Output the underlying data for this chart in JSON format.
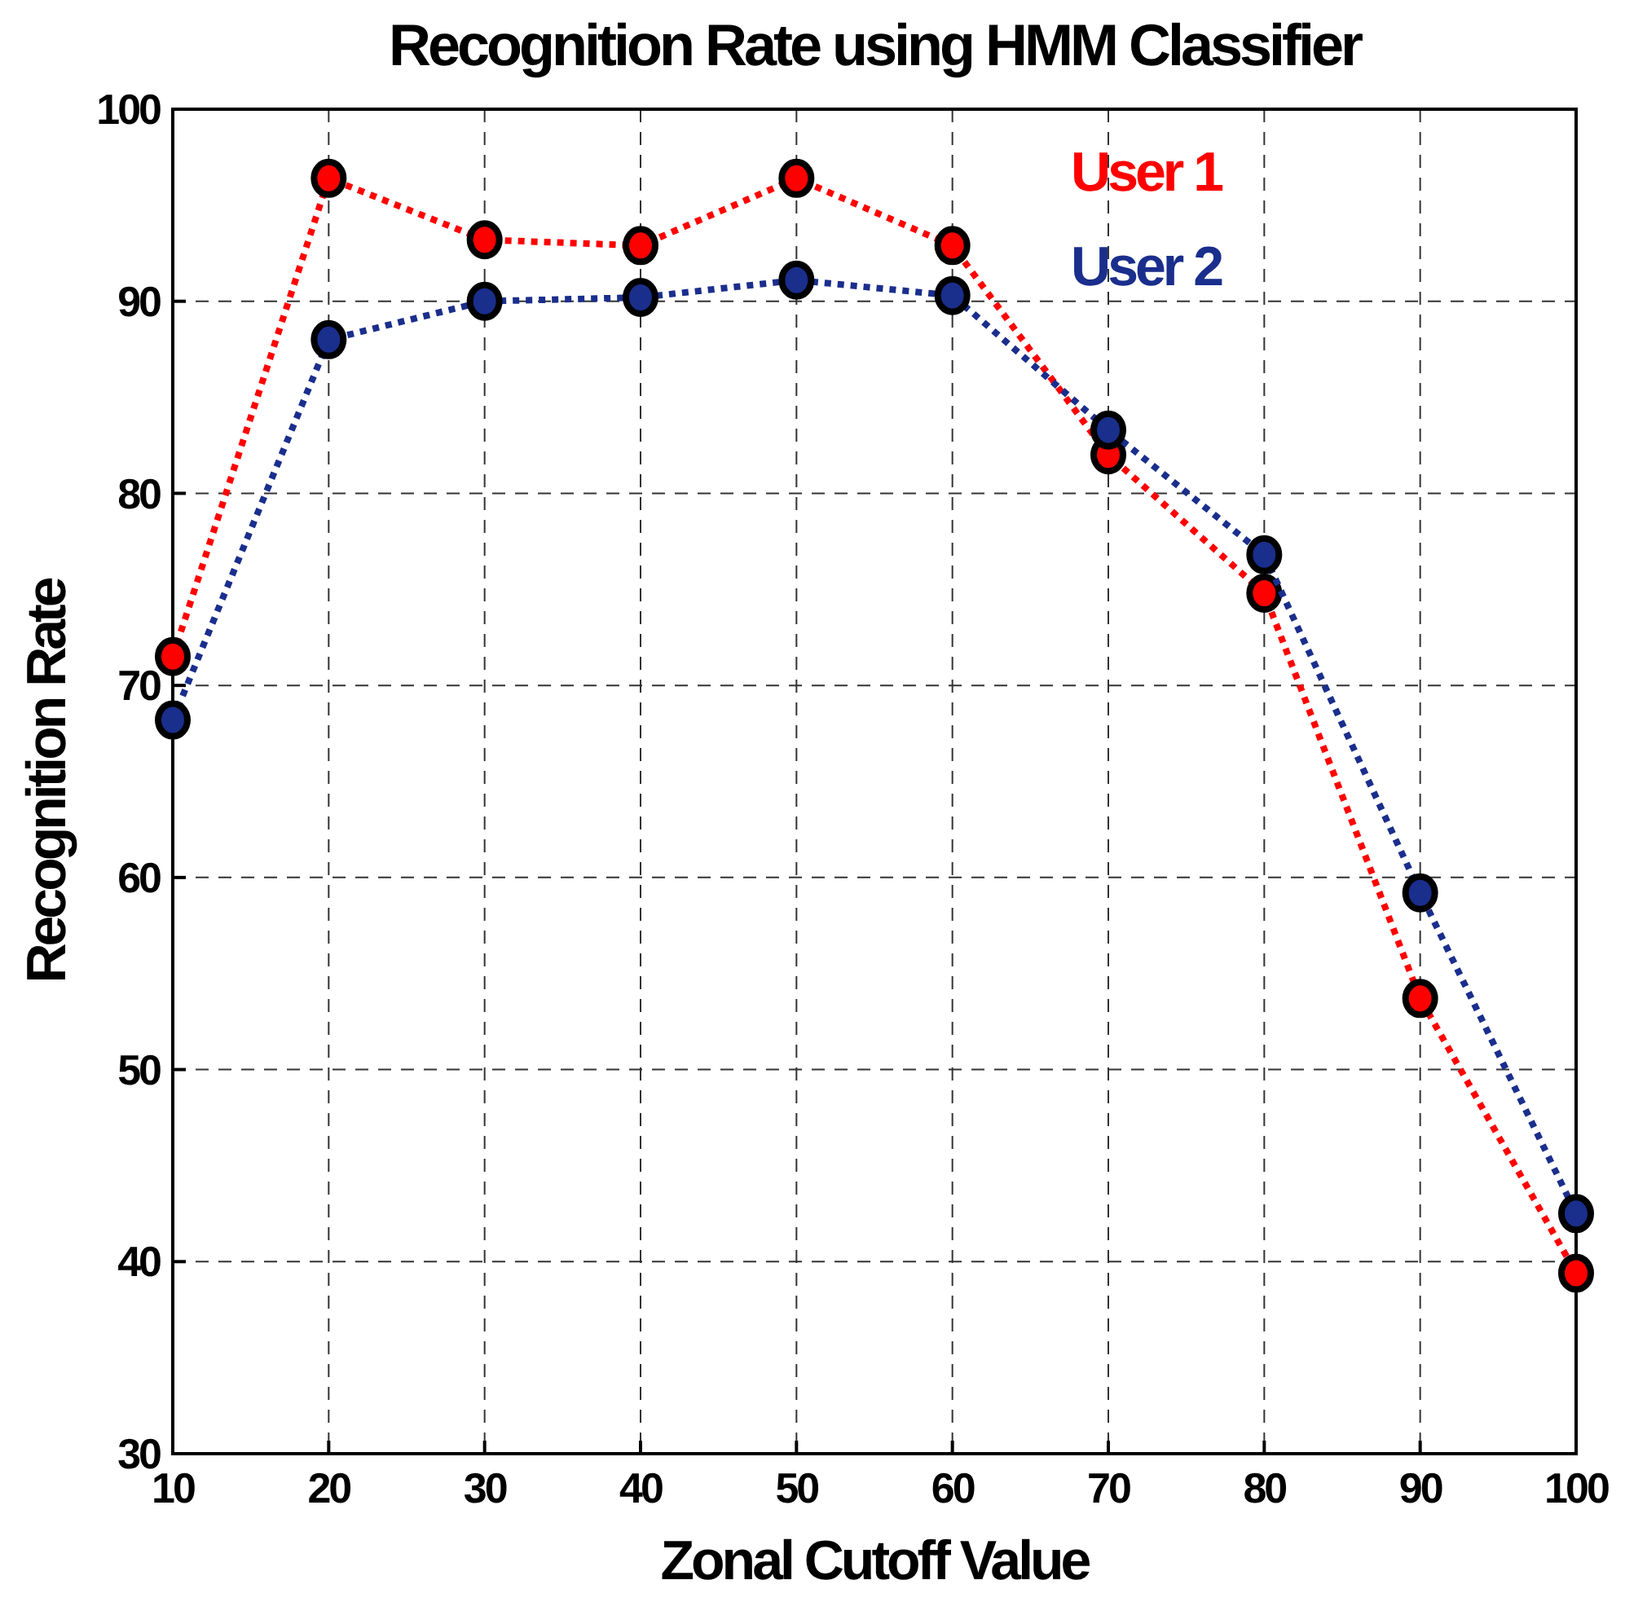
{
  "chart_data": {
    "type": "line",
    "title": "Recognition Rate using HMM Classifier",
    "xlabel": "Zonal Cutoff Value",
    "ylabel": "Recognition Rate",
    "x": [
      10,
      20,
      30,
      40,
      50,
      60,
      70,
      80,
      90,
      100
    ],
    "series": [
      {
        "name": "User 1",
        "color": "#ff0000",
        "values": [
          71.5,
          96.4,
          93.2,
          92.9,
          96.4,
          92.9,
          82.0,
          74.8,
          53.7,
          39.4
        ]
      },
      {
        "name": "User 2",
        "color": "#1a2e8c",
        "values": [
          68.2,
          88.0,
          90.0,
          90.2,
          91.1,
          90.3,
          83.3,
          76.8,
          59.2,
          42.5
        ]
      }
    ],
    "xlim": [
      10,
      100
    ],
    "xticks": [
      10,
      20,
      30,
      40,
      50,
      60,
      70,
      80,
      90,
      100
    ],
    "ylim": [
      30,
      100
    ],
    "yticks": [
      30,
      40,
      50,
      60,
      70,
      80,
      90,
      100
    ],
    "grid": true,
    "legend": "top right",
    "marker": "circle",
    "line_style": "dotted"
  }
}
